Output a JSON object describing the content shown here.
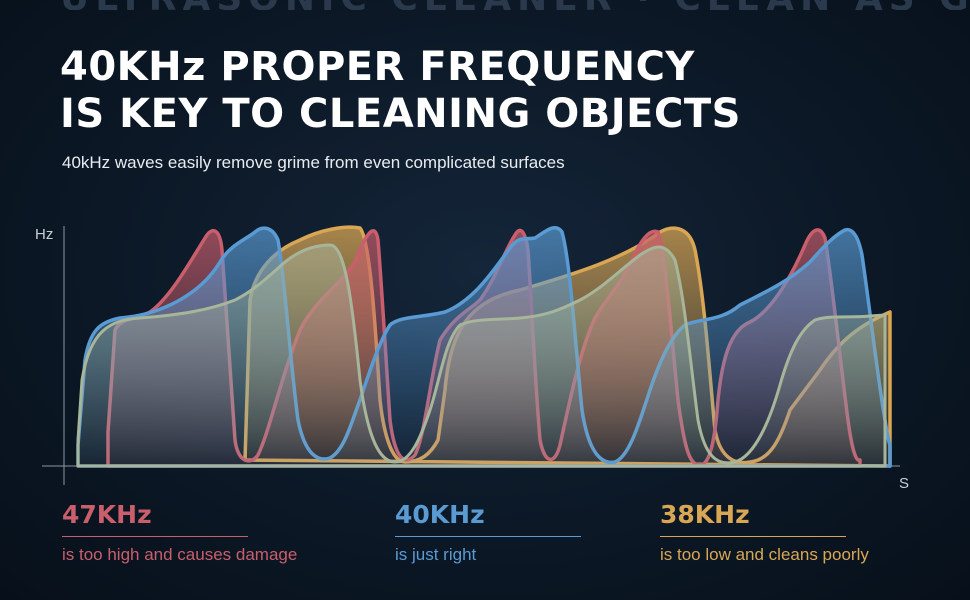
{
  "header": {
    "top_strip_text": "ULTRASONIC CLEANER · CLEAN AS GOOD AS NEW",
    "title_line1": "40KHz PROPER FREQUENCY",
    "title_line2": "IS KEY TO CLEANING OBJECTS",
    "subtitle": "40kHz waves easily remove grime from even complicated surfaces"
  },
  "graph": {
    "y_axis_label": "Hz",
    "x_axis_label": "S"
  },
  "legend": [
    {
      "frequency": "47KHz",
      "description": "is too high and causes damage",
      "color": "#c95e6c"
    },
    {
      "frequency": "40KHz",
      "description": "is just right",
      "color": "#5a9bd3"
    },
    {
      "frequency": "38KHz",
      "description": "is too low and cleans poorly",
      "color": "#d9a654"
    }
  ],
  "colors": {
    "background": "#0d1a29",
    "red": "#c95e6c",
    "blue": "#5a9bd3",
    "gold": "#d9a654",
    "sage": "#a7b59a"
  }
}
